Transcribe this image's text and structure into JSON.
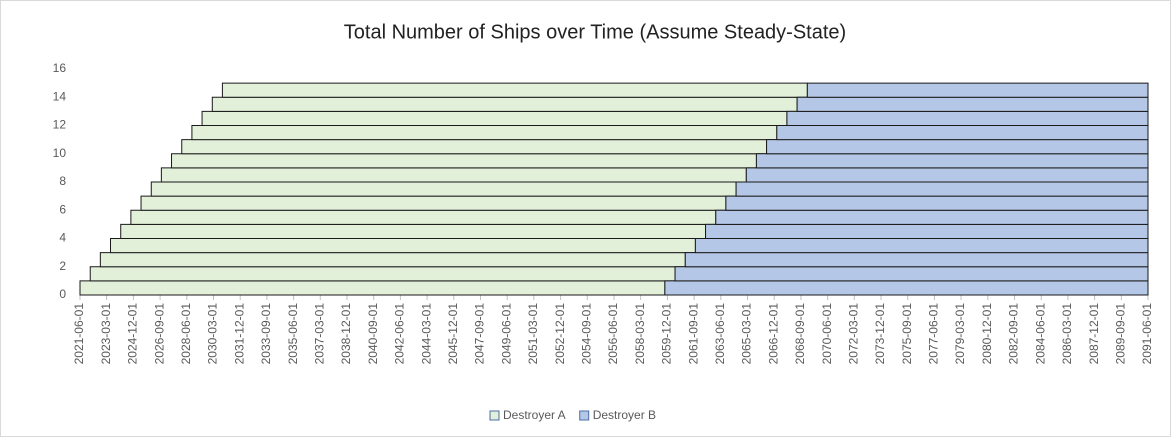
{
  "chart_data": {
    "type": "gantt",
    "title": "Total Number of Ships over Time (Assume Steady-State)",
    "series": [
      {
        "name": "Destroyer A",
        "color": "#e2efd9",
        "start": [
          "2021-06-01",
          "2022-02-01",
          "2022-10-01",
          "2023-06-01",
          "2024-02-01",
          "2024-10-01",
          "2025-06-01",
          "2026-02-01",
          "2026-10-01",
          "2027-06-01",
          "2028-02-01",
          "2028-10-01",
          "2029-06-01",
          "2030-02-01",
          "2030-10-01"
        ],
        "end": [
          "2059-10-01",
          "2060-06-01",
          "2061-02-01",
          "2061-10-01",
          "2062-06-01",
          "2063-02-01",
          "2063-10-01",
          "2064-06-01",
          "2065-02-01",
          "2065-10-01",
          "2066-06-01",
          "2067-02-01",
          "2067-10-01",
          "2068-06-01",
          "2069-02-01"
        ]
      },
      {
        "name": "Destroyer B",
        "color": "#b4c7e7",
        "start": [
          "2059-10-01",
          "2060-06-01",
          "2061-02-01",
          "2061-10-01",
          "2062-06-01",
          "2063-02-01",
          "2063-10-01",
          "2064-06-01",
          "2065-02-01",
          "2065-10-01",
          "2066-06-01",
          "2067-02-01",
          "2067-10-01",
          "2068-06-01",
          "2069-02-01"
        ],
        "end": [
          "2091-06-01",
          "2091-06-01",
          "2091-06-01",
          "2091-06-01",
          "2091-06-01",
          "2091-06-01",
          "2091-06-01",
          "2091-06-01",
          "2091-06-01",
          "2091-06-01",
          "2091-06-01",
          "2091-06-01",
          "2091-06-01",
          "2091-06-01",
          "2091-06-01"
        ]
      }
    ],
    "xlim": [
      "2021-06-01",
      "2091-06-01"
    ],
    "xticks": [
      "2021-06-01",
      "2023-03-01",
      "2024-12-01",
      "2026-09-01",
      "2028-06-01",
      "2030-03-01",
      "2031-12-01",
      "2033-09-01",
      "2035-06-01",
      "2037-03-01",
      "2038-12-01",
      "2040-09-01",
      "2042-06-01",
      "2044-03-01",
      "2045-12-01",
      "2047-09-01",
      "2049-06-01",
      "2051-03-01",
      "2052-12-01",
      "2054-09-01",
      "2056-06-01",
      "2058-03-01",
      "2059-12-01",
      "2061-09-01",
      "2063-06-01",
      "2065-03-01",
      "2066-12-01",
      "2068-09-01",
      "2070-06-01",
      "2072-03-01",
      "2073-12-01",
      "2075-09-01",
      "2077-06-01",
      "2079-03-01",
      "2080-12-01",
      "2082-09-01",
      "2084-06-01",
      "2086-03-01",
      "2087-12-01",
      "2089-09-01",
      "2091-06-01"
    ],
    "ylim": [
      0,
      16
    ],
    "yticks": [
      0,
      2,
      4,
      6,
      8,
      10,
      12,
      14,
      16
    ],
    "grid": false,
    "legend": "bottom"
  }
}
